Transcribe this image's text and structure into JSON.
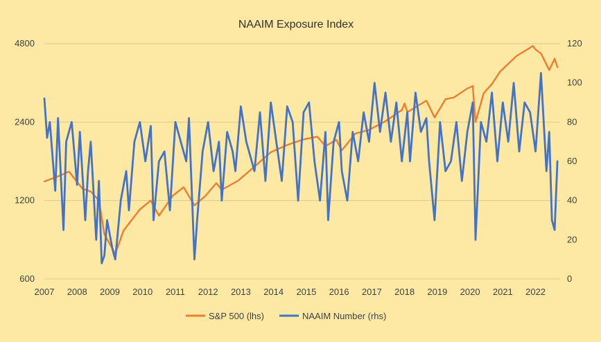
{
  "chart_data": {
    "type": "line",
    "title": "NAAIM Exposure Index",
    "x_ticks": [
      "2007",
      "2008",
      "2009",
      "2010",
      "2011",
      "2012",
      "2013",
      "2014",
      "2015",
      "2016",
      "2017",
      "2018",
      "2019",
      "2020",
      "2021",
      "2022"
    ],
    "y_left_ticks": [
      "4800",
      "2400",
      "1200",
      "600"
    ],
    "y_left_values": [
      4800,
      2400,
      1200,
      600
    ],
    "y_left_scale": "log",
    "y_left_range": [
      600,
      4800
    ],
    "y_right_ticks": [
      "120",
      "100",
      "80",
      "60",
      "40",
      "20",
      "0"
    ],
    "y_right_values": [
      120,
      100,
      80,
      60,
      40,
      20,
      0
    ],
    "y_right_range": [
      0,
      120
    ],
    "grid": "horizontal",
    "legend_placement": "bottom",
    "series": [
      {
        "name": "S&P 500 (lhs)",
        "axis": "left",
        "color": "#ED7D31",
        "x": [
          "2007-01",
          "2007-07",
          "2007-10",
          "2008-03",
          "2008-06",
          "2008-09",
          "2008-11",
          "2009-03",
          "2009-06",
          "2009-12",
          "2010-04",
          "2010-07",
          "2010-12",
          "2011-04",
          "2011-08",
          "2011-12",
          "2012-04",
          "2012-06",
          "2012-12",
          "2013-06",
          "2013-12",
          "2014-06",
          "2014-12",
          "2015-05",
          "2015-08",
          "2015-12",
          "2016-02",
          "2016-07",
          "2016-12",
          "2017-06",
          "2017-12",
          "2018-01",
          "2018-02",
          "2018-09",
          "2018-12",
          "2019-04",
          "2019-07",
          "2019-12",
          "2020-02",
          "2020-03",
          "2020-06",
          "2020-09",
          "2020-12",
          "2021-06",
          "2021-12",
          "2022-01",
          "2022-03",
          "2022-06",
          "2022-08",
          "2022-09"
        ],
        "values": [
          1420,
          1500,
          1550,
          1330,
          1300,
          1200,
          890,
          750,
          920,
          1110,
          1200,
          1050,
          1250,
          1350,
          1150,
          1250,
          1400,
          1320,
          1430,
          1620,
          1840,
          1960,
          2060,
          2110,
          1940,
          2050,
          1870,
          2170,
          2240,
          2420,
          2670,
          2830,
          2620,
          2900,
          2500,
          2940,
          2980,
          3230,
          3300,
          2400,
          3100,
          3360,
          3750,
          4300,
          4700,
          4550,
          4400,
          3800,
          4200,
          3900
        ]
      },
      {
        "name": "NAAIM Number (rhs)",
        "axis": "right",
        "color": "#4472C4",
        "x": [
          "2007-01",
          "2007-02",
          "2007-03",
          "2007-05",
          "2007-06",
          "2007-08",
          "2007-09",
          "2007-11",
          "2008-01",
          "2008-02",
          "2008-04",
          "2008-05",
          "2008-06",
          "2008-08",
          "2008-09",
          "2008-10",
          "2008-11",
          "2008-12",
          "2009-02",
          "2009-03",
          "2009-05",
          "2009-07",
          "2009-08",
          "2009-10",
          "2009-12",
          "2010-02",
          "2010-04",
          "2010-05",
          "2010-07",
          "2010-09",
          "2010-11",
          "2011-01",
          "2011-03",
          "2011-05",
          "2011-06",
          "2011-08",
          "2011-09",
          "2011-11",
          "2012-01",
          "2012-03",
          "2012-05",
          "2012-06",
          "2012-08",
          "2012-10",
          "2012-11",
          "2013-01",
          "2013-03",
          "2013-05",
          "2013-06",
          "2013-08",
          "2013-10",
          "2013-12",
          "2014-02",
          "2014-04",
          "2014-06",
          "2014-08",
          "2014-10",
          "2014-12",
          "2015-02",
          "2015-04",
          "2015-06",
          "2015-08",
          "2015-09",
          "2015-11",
          "2016-01",
          "2016-02",
          "2016-04",
          "2016-06",
          "2016-08",
          "2016-10",
          "2016-12",
          "2017-02",
          "2017-04",
          "2017-06",
          "2017-08",
          "2017-10",
          "2017-12",
          "2018-02",
          "2018-03",
          "2018-05",
          "2018-07",
          "2018-09",
          "2018-10",
          "2018-12",
          "2019-02",
          "2019-04",
          "2019-06",
          "2019-08",
          "2019-10",
          "2019-12",
          "2020-02",
          "2020-03",
          "2020-05",
          "2020-07",
          "2020-09",
          "2020-11",
          "2021-01",
          "2021-03",
          "2021-05",
          "2021-07",
          "2021-09",
          "2021-11",
          "2022-01",
          "2022-03",
          "2022-05",
          "2022-06",
          "2022-07",
          "2022-08",
          "2022-09"
        ],
        "values": [
          92,
          72,
          80,
          45,
          82,
          25,
          70,
          80,
          48,
          75,
          30,
          55,
          70,
          20,
          50,
          8,
          12,
          30,
          15,
          10,
          40,
          55,
          35,
          70,
          80,
          60,
          78,
          30,
          60,
          65,
          35,
          80,
          70,
          60,
          82,
          10,
          30,
          65,
          80,
          55,
          70,
          40,
          75,
          65,
          55,
          88,
          70,
          60,
          55,
          85,
          50,
          90,
          70,
          50,
          88,
          80,
          40,
          85,
          90,
          60,
          40,
          75,
          30,
          70,
          80,
          55,
          40,
          75,
          60,
          85,
          70,
          100,
          75,
          95,
          70,
          90,
          60,
          85,
          60,
          95,
          75,
          82,
          60,
          30,
          80,
          55,
          60,
          80,
          50,
          75,
          90,
          20,
          80,
          70,
          95,
          60,
          90,
          70,
          100,
          65,
          90,
          85,
          65,
          105,
          55,
          75,
          30,
          25,
          60
        ]
      }
    ]
  }
}
